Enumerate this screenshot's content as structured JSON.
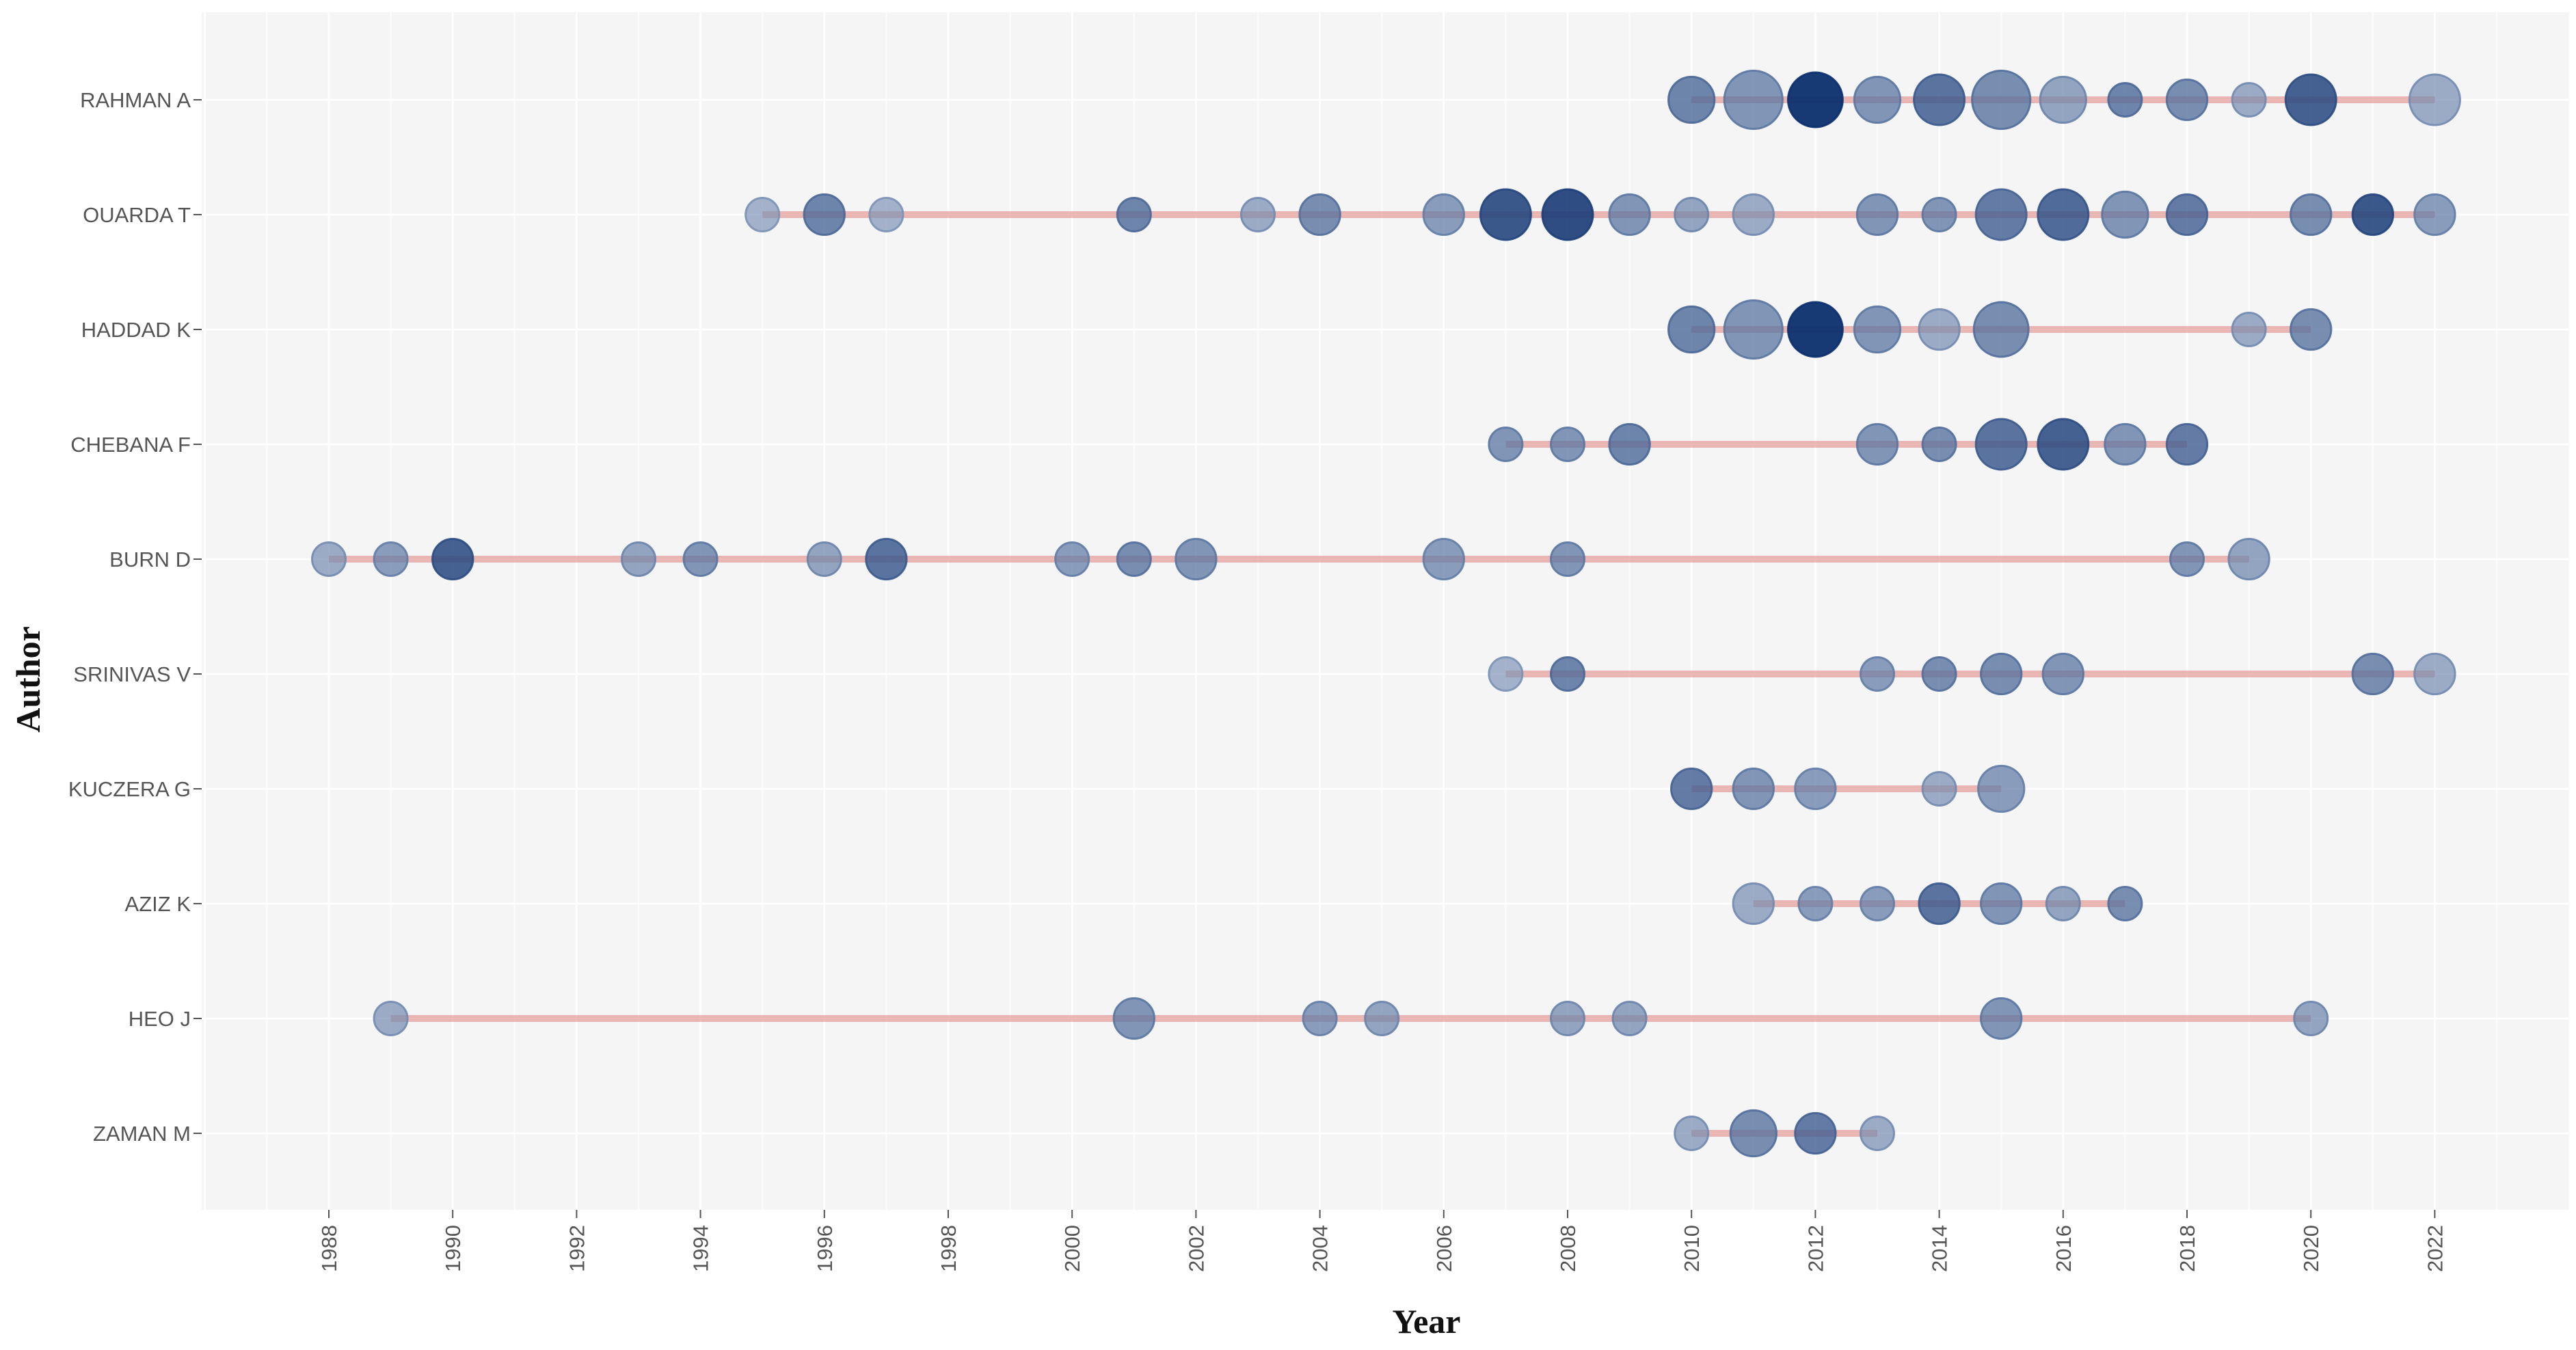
{
  "chart_data": {
    "type": "scatter",
    "title": "",
    "xlabel": "Year",
    "ylabel": "Author",
    "xlim": [
      1986,
      2023
    ],
    "x_ticks": [
      1988,
      1990,
      1992,
      1994,
      1996,
      1998,
      2000,
      2002,
      2004,
      2006,
      2008,
      2010,
      2012,
      2014,
      2016,
      2018,
      2020,
      2022
    ],
    "authors": [
      "RAHMAN A",
      "OUARDA T",
      "HADDAD K",
      "CHEBANA F",
      "BURN D",
      "SRINIVAS V",
      "KUCZERA G",
      "AZIZ K",
      "HEO J",
      "ZAMAN M"
    ],
    "series": [
      {
        "name": "RAHMAN A",
        "points": [
          {
            "year": 2010,
            "articles": 3,
            "intensity": 0.6
          },
          {
            "year": 2011,
            "articles": 6,
            "intensity": 0.5
          },
          {
            "year": 2012,
            "articles": 5,
            "intensity": 1.0
          },
          {
            "year": 2013,
            "articles": 3,
            "intensity": 0.5
          },
          {
            "year": 2014,
            "articles": 4,
            "intensity": 0.7
          },
          {
            "year": 2015,
            "articles": 6,
            "intensity": 0.55
          },
          {
            "year": 2016,
            "articles": 3,
            "intensity": 0.4
          },
          {
            "year": 2017,
            "articles": 1,
            "intensity": 0.6
          },
          {
            "year": 2018,
            "articles": 2,
            "intensity": 0.55
          },
          {
            "year": 2019,
            "articles": 1,
            "intensity": 0.35
          },
          {
            "year": 2020,
            "articles": 4,
            "intensity": 0.8
          },
          {
            "year": 2022,
            "articles": 4,
            "intensity": 0.35
          }
        ]
      },
      {
        "name": "OUARDA T",
        "points": [
          {
            "year": 1995,
            "articles": 1,
            "intensity": 0.3
          },
          {
            "year": 1996,
            "articles": 2,
            "intensity": 0.6
          },
          {
            "year": 1997,
            "articles": 1,
            "intensity": 0.3
          },
          {
            "year": 2001,
            "articles": 1,
            "intensity": 0.6
          },
          {
            "year": 2003,
            "articles": 1,
            "intensity": 0.35
          },
          {
            "year": 2004,
            "articles": 2,
            "intensity": 0.55
          },
          {
            "year": 2006,
            "articles": 2,
            "intensity": 0.45
          },
          {
            "year": 2007,
            "articles": 4,
            "intensity": 0.85
          },
          {
            "year": 2008,
            "articles": 4,
            "intensity": 0.9
          },
          {
            "year": 2009,
            "articles": 2,
            "intensity": 0.5
          },
          {
            "year": 2010,
            "articles": 1,
            "intensity": 0.4
          },
          {
            "year": 2011,
            "articles": 2,
            "intensity": 0.35
          },
          {
            "year": 2013,
            "articles": 2,
            "intensity": 0.5
          },
          {
            "year": 2014,
            "articles": 1,
            "intensity": 0.5
          },
          {
            "year": 2015,
            "articles": 4,
            "intensity": 0.65
          },
          {
            "year": 2016,
            "articles": 4,
            "intensity": 0.75
          },
          {
            "year": 2017,
            "articles": 3,
            "intensity": 0.5
          },
          {
            "year": 2018,
            "articles": 2,
            "intensity": 0.65
          },
          {
            "year": 2020,
            "articles": 2,
            "intensity": 0.55
          },
          {
            "year": 2021,
            "articles": 2,
            "intensity": 0.85
          },
          {
            "year": 2022,
            "articles": 2,
            "intensity": 0.45
          }
        ]
      },
      {
        "name": "HADDAD K",
        "points": [
          {
            "year": 2010,
            "articles": 3,
            "intensity": 0.6
          },
          {
            "year": 2011,
            "articles": 6,
            "intensity": 0.5
          },
          {
            "year": 2012,
            "articles": 5,
            "intensity": 1.0
          },
          {
            "year": 2013,
            "articles": 3,
            "intensity": 0.5
          },
          {
            "year": 2014,
            "articles": 2,
            "intensity": 0.35
          },
          {
            "year": 2015,
            "articles": 5,
            "intensity": 0.55
          },
          {
            "year": 2019,
            "articles": 1,
            "intensity": 0.35
          },
          {
            "year": 2020,
            "articles": 2,
            "intensity": 0.55
          }
        ]
      },
      {
        "name": "CHEBANA F",
        "points": [
          {
            "year": 2007,
            "articles": 1,
            "intensity": 0.5
          },
          {
            "year": 2008,
            "articles": 1,
            "intensity": 0.5
          },
          {
            "year": 2009,
            "articles": 2,
            "intensity": 0.6
          },
          {
            "year": 2013,
            "articles": 2,
            "intensity": 0.5
          },
          {
            "year": 2014,
            "articles": 1,
            "intensity": 0.55
          },
          {
            "year": 2015,
            "articles": 4,
            "intensity": 0.7
          },
          {
            "year": 2016,
            "articles": 4,
            "intensity": 0.8
          },
          {
            "year": 2017,
            "articles": 2,
            "intensity": 0.5
          },
          {
            "year": 2018,
            "articles": 2,
            "intensity": 0.65
          }
        ]
      },
      {
        "name": "BURN D",
        "points": [
          {
            "year": 1988,
            "articles": 1,
            "intensity": 0.35
          },
          {
            "year": 1989,
            "articles": 1,
            "intensity": 0.45
          },
          {
            "year": 1990,
            "articles": 2,
            "intensity": 0.8
          },
          {
            "year": 1993,
            "articles": 1,
            "intensity": 0.4
          },
          {
            "year": 1994,
            "articles": 1,
            "intensity": 0.5
          },
          {
            "year": 1996,
            "articles": 1,
            "intensity": 0.4
          },
          {
            "year": 1997,
            "articles": 2,
            "intensity": 0.7
          },
          {
            "year": 2000,
            "articles": 1,
            "intensity": 0.45
          },
          {
            "year": 2001,
            "articles": 1,
            "intensity": 0.55
          },
          {
            "year": 2002,
            "articles": 2,
            "intensity": 0.5
          },
          {
            "year": 2006,
            "articles": 2,
            "intensity": 0.45
          },
          {
            "year": 2008,
            "articles": 1,
            "intensity": 0.5
          },
          {
            "year": 2018,
            "articles": 1,
            "intensity": 0.5
          },
          {
            "year": 2019,
            "articles": 2,
            "intensity": 0.4
          }
        ]
      },
      {
        "name": "SRINIVAS V",
        "points": [
          {
            "year": 2007,
            "articles": 1,
            "intensity": 0.3
          },
          {
            "year": 2008,
            "articles": 1,
            "intensity": 0.6
          },
          {
            "year": 2013,
            "articles": 1,
            "intensity": 0.45
          },
          {
            "year": 2014,
            "articles": 1,
            "intensity": 0.55
          },
          {
            "year": 2015,
            "articles": 2,
            "intensity": 0.55
          },
          {
            "year": 2016,
            "articles": 2,
            "intensity": 0.5
          },
          {
            "year": 2021,
            "articles": 2,
            "intensity": 0.55
          },
          {
            "year": 2022,
            "articles": 2,
            "intensity": 0.35
          }
        ]
      },
      {
        "name": "KUCZERA G",
        "points": [
          {
            "year": 2010,
            "articles": 2,
            "intensity": 0.65
          },
          {
            "year": 2011,
            "articles": 2,
            "intensity": 0.5
          },
          {
            "year": 2012,
            "articles": 2,
            "intensity": 0.45
          },
          {
            "year": 2014,
            "articles": 1,
            "intensity": 0.35
          },
          {
            "year": 2015,
            "articles": 3,
            "intensity": 0.45
          }
        ]
      },
      {
        "name": "AZIZ K",
        "points": [
          {
            "year": 2011,
            "articles": 2,
            "intensity": 0.35
          },
          {
            "year": 2012,
            "articles": 1,
            "intensity": 0.45
          },
          {
            "year": 2013,
            "articles": 1,
            "intensity": 0.45
          },
          {
            "year": 2014,
            "articles": 2,
            "intensity": 0.7
          },
          {
            "year": 2015,
            "articles": 2,
            "intensity": 0.5
          },
          {
            "year": 2016,
            "articles": 1,
            "intensity": 0.4
          },
          {
            "year": 2017,
            "articles": 1,
            "intensity": 0.55
          }
        ]
      },
      {
        "name": "HEO J",
        "points": [
          {
            "year": 1989,
            "articles": 1,
            "intensity": 0.35
          },
          {
            "year": 2001,
            "articles": 2,
            "intensity": 0.5
          },
          {
            "year": 2004,
            "articles": 1,
            "intensity": 0.45
          },
          {
            "year": 2005,
            "articles": 1,
            "intensity": 0.4
          },
          {
            "year": 2008,
            "articles": 1,
            "intensity": 0.4
          },
          {
            "year": 2009,
            "articles": 1,
            "intensity": 0.4
          },
          {
            "year": 2015,
            "articles": 2,
            "intensity": 0.5
          },
          {
            "year": 2020,
            "articles": 1,
            "intensity": 0.4
          }
        ]
      },
      {
        "name": "ZAMAN M",
        "points": [
          {
            "year": 2010,
            "articles": 1,
            "intensity": 0.35
          },
          {
            "year": 2011,
            "articles": 3,
            "intensity": 0.55
          },
          {
            "year": 2012,
            "articles": 2,
            "intensity": 0.65
          },
          {
            "year": 2013,
            "articles": 1,
            "intensity": 0.35
          }
        ]
      }
    ],
    "colors": {
      "panel_background": "#f5f5f5",
      "gridline": "#ffffff",
      "timeline": "#e08a86",
      "dot_dark": "#0b2f6e",
      "dot_light": "#a9bbd4"
    }
  }
}
